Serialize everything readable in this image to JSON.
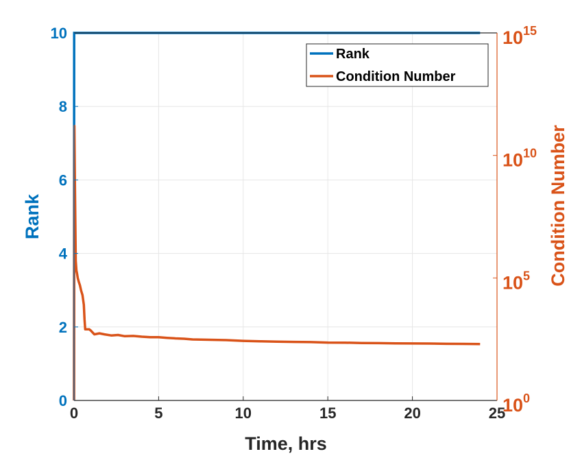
{
  "chart_data": {
    "type": "line",
    "title": "",
    "xlabel": "Time, hrs",
    "ylabel_left": "Rank",
    "ylabel_right": "Condition Number",
    "xlim": [
      0,
      25
    ],
    "ylim_left": [
      0,
      10
    ],
    "ylim_right": [
      1,
      1000000000000000.0
    ],
    "right_axis_scale": "log",
    "x_ticks": [
      "0",
      "5",
      "10",
      "15",
      "20",
      "25"
    ],
    "y_left_ticks": [
      "0",
      "2",
      "4",
      "6",
      "8",
      "10"
    ],
    "y_right_ticks": [
      {
        "base": "10",
        "exp": "0"
      },
      {
        "base": "10",
        "exp": "5"
      },
      {
        "base": "10",
        "exp": "10"
      },
      {
        "base": "10",
        "exp": "15"
      }
    ],
    "grid": true,
    "legend_position": "top-right",
    "colors": {
      "rank": "#0072BD",
      "condition": "#D95319",
      "grid": "#e6e6e6",
      "axes": "#262626"
    },
    "series": [
      {
        "name": "Rank",
        "axis": "left",
        "x": [
          0,
          0.005,
          0.01,
          24
        ],
        "y": [
          0,
          7,
          10,
          10
        ]
      },
      {
        "name": "Condition Number",
        "axis": "right",
        "x": [
          0,
          0.02,
          0.05,
          0.08,
          0.1,
          0.14,
          0.18,
          0.22,
          0.28,
          0.35,
          0.42,
          0.5,
          0.58,
          0.62,
          0.66,
          0.72,
          0.8,
          0.9,
          1.0,
          1.2,
          1.5,
          1.8,
          2.2,
          2.6,
          3.0,
          3.5,
          4.0,
          4.5,
          5.0,
          5.5,
          6.0,
          6.5,
          7.0,
          8.0,
          9.0,
          10.0,
          11.0,
          12.0,
          13.0,
          14.0,
          15.0,
          16.0,
          17.0,
          18.0,
          19.0,
          20.0,
          21.0,
          22.0,
          23.0,
          24.0
        ],
        "y": [
          1,
          160000000000.0,
          1000000000.0,
          10000000.0,
          500000.0,
          200000.0,
          150000.0,
          100000.0,
          70000.0,
          50000.0,
          30000.0,
          20000.0,
          8000.0,
          2000.0,
          800,
          800,
          800,
          800,
          700,
          500,
          550,
          500,
          450,
          470,
          420,
          430,
          400,
          380,
          380,
          360,
          340,
          330,
          310,
          300,
          290,
          270,
          260,
          250,
          245,
          240,
          230,
          228,
          222,
          218,
          215,
          212,
          210,
          205,
          203,
          200
        ]
      }
    ]
  }
}
